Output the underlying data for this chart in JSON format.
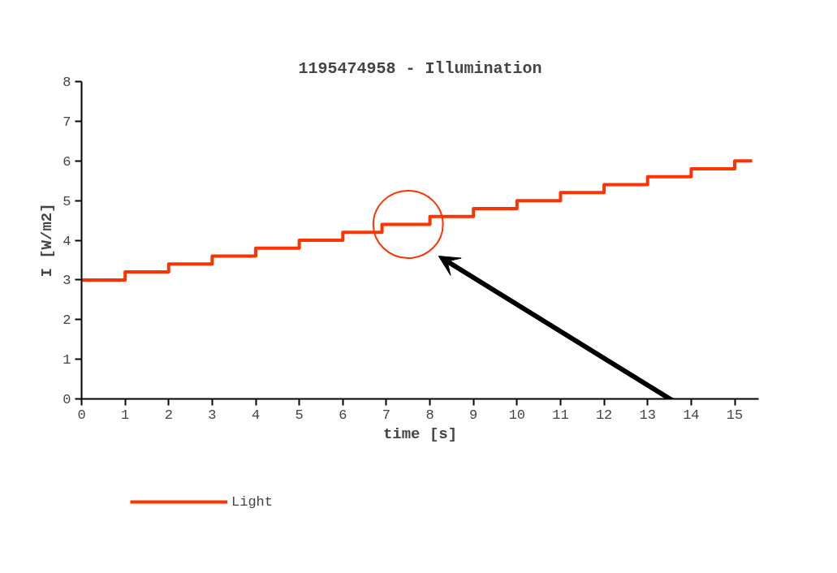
{
  "chart_data": {
    "type": "step",
    "title": "1195474958 - Illumination",
    "xlabel": "time [s]",
    "ylabel": "I [W/m2]",
    "x": [
      0,
      1,
      2,
      3,
      4,
      5,
      6,
      6.9,
      8,
      9,
      10,
      11,
      12,
      13,
      14,
      15,
      15.4
    ],
    "series": [
      {
        "name": "Light",
        "color": "#ff3300",
        "values": [
          3.0,
          3.2,
          3.4,
          3.6,
          3.8,
          4.0,
          4.2,
          4.4,
          4.6,
          4.8,
          5.0,
          5.2,
          5.4,
          5.6,
          5.8,
          6.0,
          6.0
        ]
      }
    ],
    "xlim": [
      0,
      15.55
    ],
    "ylim": [
      0,
      8
    ],
    "xticks": [
      0,
      1,
      2,
      3,
      4,
      5,
      6,
      7,
      8,
      9,
      10,
      11,
      12,
      13,
      14,
      15
    ],
    "yticks": [
      0,
      1,
      2,
      3,
      4,
      5,
      6,
      7,
      8
    ],
    "grid": false,
    "legend": "bottom"
  }
}
